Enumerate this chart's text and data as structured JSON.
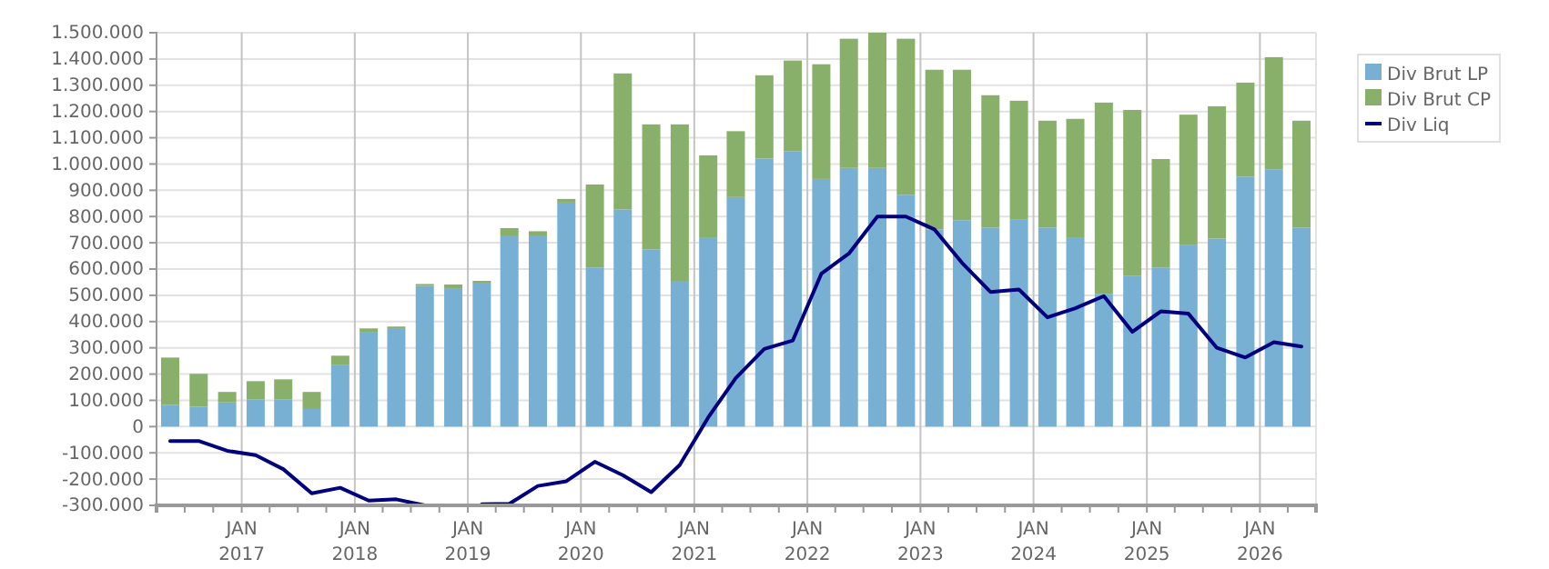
{
  "chart_data": {
    "type": "bar",
    "stacked": true,
    "x": [
      "2016-05-15",
      "2016-08-15",
      "2016-11-15",
      "2017-02-15",
      "2017-05-15",
      "2017-08-15",
      "2017-11-15",
      "2018-02-15",
      "2018-05-15",
      "2018-08-15",
      "2018-11-15",
      "2019-02-15",
      "2019-05-15",
      "2019-08-15",
      "2019-11-15",
      "2020-02-15",
      "2020-05-15",
      "2020-08-15",
      "2020-11-15",
      "2021-02-15",
      "2021-05-15",
      "2021-08-15",
      "2021-11-15",
      "2022-02-15",
      "2022-05-15",
      "2022-08-15",
      "2022-11-15",
      "2023-02-15",
      "2023-05-15",
      "2023-08-15",
      "2023-11-15",
      "2024-02-15",
      "2024-05-15",
      "2024-08-15",
      "2024-11-15",
      "2025-02-15",
      "2025-05-15",
      "2025-08-15",
      "2025-11-15",
      "2026-02-15",
      "2026-05-15"
    ],
    "series": [
      {
        "name": "Div Brut LP",
        "color": "#77b0d3",
        "values": [
          83000,
          76000,
          92000,
          104000,
          104000,
          67000,
          236000,
          361000,
          372000,
          536000,
          527000,
          548000,
          728000,
          728000,
          853000,
          606000,
          827000,
          675000,
          555000,
          721000,
          874000,
          1021000,
          1049000,
          943000,
          985000,
          985000,
          883000,
          751000,
          786000,
          758000,
          790000,
          758000,
          721000,
          504000,
          575000,
          606000,
          693000,
          716000,
          952000,
          980000,
          758000
        ]
      },
      {
        "name": "Div Brut CP",
        "color": "#88b06a",
        "values": [
          180000,
          125000,
          40000,
          69000,
          76000,
          65000,
          34000,
          13000,
          9000,
          7000,
          14000,
          7000,
          28000,
          16000,
          14000,
          316000,
          518000,
          476000,
          596000,
          312000,
          251000,
          317000,
          345000,
          437000,
          492000,
          515000,
          594000,
          608000,
          573000,
          504000,
          451000,
          407000,
          451000,
          730000,
          631000,
          413000,
          495000,
          504000,
          358000,
          427000,
          407000
        ]
      },
      {
        "name": "Div Liq",
        "type": "line",
        "color": "#00007f",
        "values": [
          -55000,
          -55000,
          -92000,
          -109000,
          -162000,
          -254000,
          -233000,
          -282000,
          -277000,
          -300000,
          null,
          -296000,
          -294000,
          -226000,
          -208000,
          -134000,
          -185000,
          -250000,
          -146000,
          35000,
          185000,
          296000,
          328000,
          582000,
          659000,
          800000,
          800000,
          751000,
          624000,
          513000,
          522000,
          416000,
          451000,
          497000,
          361000,
          439000,
          430000,
          300000,
          263000,
          321000,
          305000
        ]
      }
    ],
    "xlim": [
      "2016-04-01",
      "2026-07-01"
    ],
    "xticks": [
      {
        "value": "2016-07-01",
        "label": null
      },
      {
        "value": "2016-10-01",
        "label": null
      },
      {
        "value": "2017-01-01",
        "label": "JAN\n2017"
      },
      {
        "value": "2017-04-01",
        "label": null
      },
      {
        "value": "2017-07-01",
        "label": null
      },
      {
        "value": "2017-10-01",
        "label": null
      },
      {
        "value": "2018-01-01",
        "label": "JAN\n2018"
      },
      {
        "value": "2018-04-01",
        "label": null
      },
      {
        "value": "2018-07-01",
        "label": null
      },
      {
        "value": "2018-10-01",
        "label": null
      },
      {
        "value": "2019-01-01",
        "label": "JAN\n2019"
      },
      {
        "value": "2019-04-01",
        "label": null
      },
      {
        "value": "2019-07-01",
        "label": null
      },
      {
        "value": "2019-10-01",
        "label": null
      },
      {
        "value": "2020-01-01",
        "label": "JAN\n2020"
      },
      {
        "value": "2020-04-01",
        "label": null
      },
      {
        "value": "2020-07-01",
        "label": null
      },
      {
        "value": "2020-10-01",
        "label": null
      },
      {
        "value": "2021-01-01",
        "label": "JAN\n2021"
      },
      {
        "value": "2021-04-01",
        "label": null
      },
      {
        "value": "2021-07-01",
        "label": null
      },
      {
        "value": "2021-10-01",
        "label": null
      },
      {
        "value": "2022-01-01",
        "label": "JAN\n2022"
      },
      {
        "value": "2022-04-01",
        "label": null
      },
      {
        "value": "2022-07-01",
        "label": null
      },
      {
        "value": "2022-10-01",
        "label": null
      },
      {
        "value": "2023-01-01",
        "label": "JAN\n2023"
      },
      {
        "value": "2023-04-01",
        "label": null
      },
      {
        "value": "2023-07-01",
        "label": null
      },
      {
        "value": "2023-10-01",
        "label": null
      },
      {
        "value": "2024-01-01",
        "label": "JAN\n2024"
      },
      {
        "value": "2024-04-01",
        "label": null
      },
      {
        "value": "2024-07-01",
        "label": null
      },
      {
        "value": "2024-10-01",
        "label": null
      },
      {
        "value": "2025-01-01",
        "label": "JAN\n2025"
      },
      {
        "value": "2025-04-01",
        "label": null
      },
      {
        "value": "2025-07-01",
        "label": null
      },
      {
        "value": "2025-10-01",
        "label": null
      },
      {
        "value": "2026-01-01",
        "label": "JAN\n2026"
      },
      {
        "value": "2026-04-01",
        "label": null
      }
    ],
    "ylim": [
      -300000,
      1500000
    ],
    "yticks": [
      {
        "value": -300000,
        "label": "-300.000"
      },
      {
        "value": -200000,
        "label": "-200.000"
      },
      {
        "value": -100000,
        "label": "-100.000"
      },
      0,
      {
        "value": 100000,
        "label": "100.000"
      },
      {
        "value": 200000,
        "label": "200.000"
      },
      {
        "value": 300000,
        "label": "300.000"
      },
      {
        "value": 400000,
        "label": "400.000"
      },
      {
        "value": 500000,
        "label": "500.000"
      },
      {
        "value": 600000,
        "label": "600.000"
      },
      {
        "value": 700000,
        "label": "700.000"
      },
      {
        "value": 800000,
        "label": "800.000"
      },
      {
        "value": 900000,
        "label": "900.000"
      },
      {
        "value": 1000000,
        "label": "1.000.000"
      },
      {
        "value": 1100000,
        "label": "1.100.000"
      },
      {
        "value": 1200000,
        "label": "1.200.000"
      },
      {
        "value": 1300000,
        "label": "1.300.000"
      },
      {
        "value": 1400000,
        "label": "1.400.000"
      },
      {
        "value": 1500000,
        "label": "1.500.000"
      }
    ],
    "grid": true,
    "legend": "top right"
  }
}
